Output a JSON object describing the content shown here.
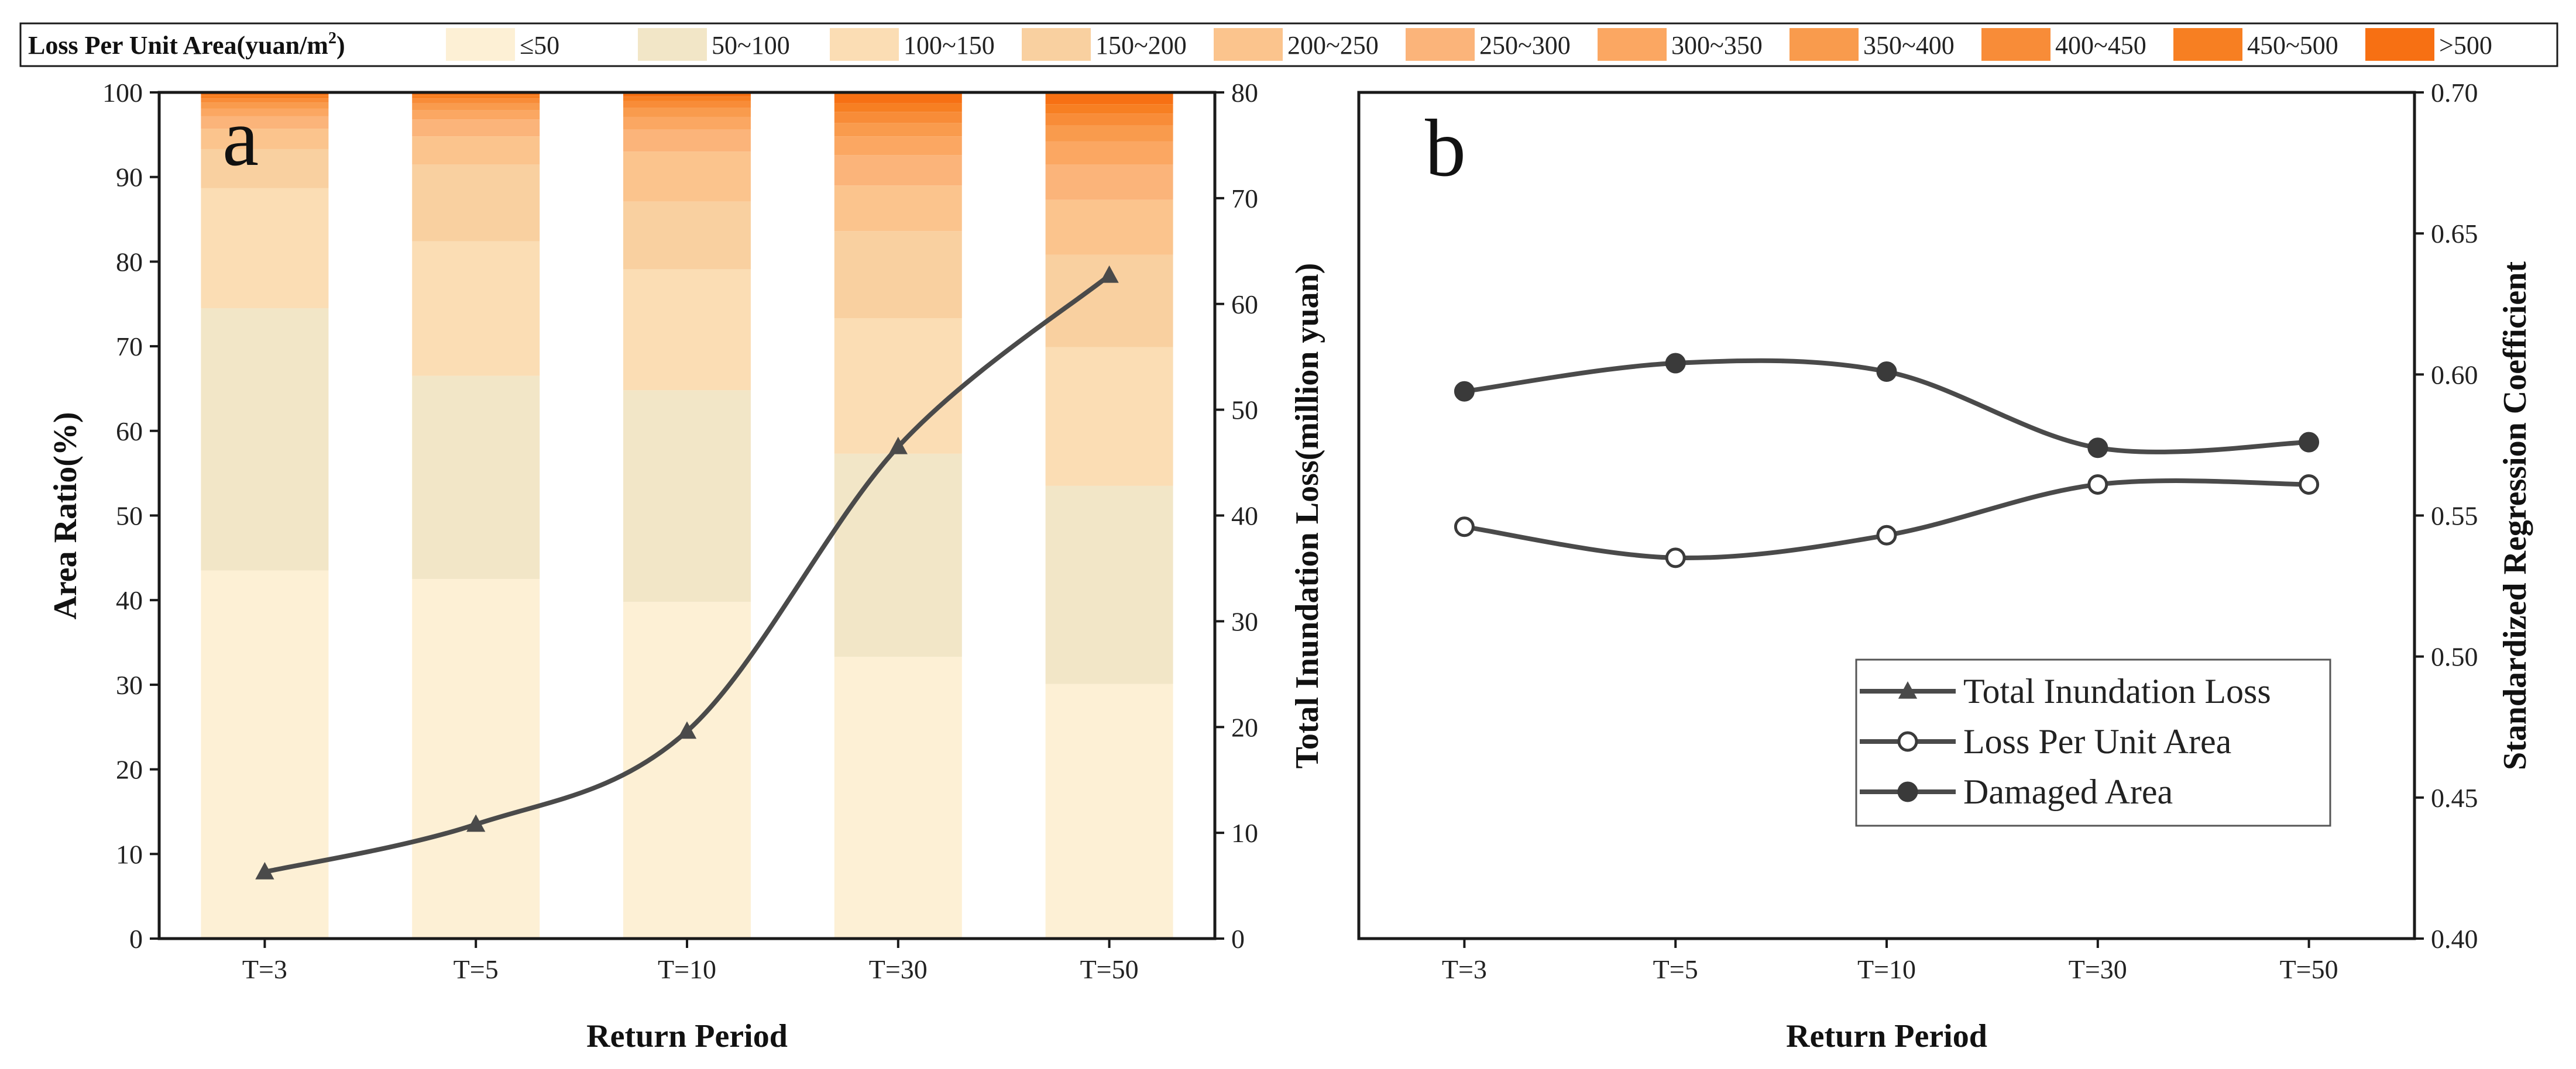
{
  "colors": {
    "axis": "#1a1a1a",
    "line": "#4a4a4a",
    "bins": [
      "#FDF0D5",
      "#F2E6C7",
      "#FBDDB4",
      "#F9D0A0",
      "#FBC48D",
      "#FBB47A",
      "#FBA762",
      "#F99B4D",
      "#F88C38",
      "#F77F22",
      "#F77013"
    ]
  },
  "chart_data": [
    {
      "panel": "a",
      "type": "bar",
      "stacked": true,
      "panel_label": "a",
      "categories": [
        "T=3",
        "T=5",
        "T=10",
        "T=30",
        "T=50"
      ],
      "xlabel": "Return Period",
      "ylabel": "Area Ratio(%)",
      "ylim": [
        0,
        100
      ],
      "yticks": [
        "0",
        "10",
        "20",
        "30",
        "40",
        "50",
        "60",
        "70",
        "80",
        "90",
        "100"
      ],
      "y2label": "Total Inundation Loss(million yuan)",
      "y2lim": [
        0,
        80
      ],
      "y2ticks": [
        "0",
        "10",
        "20",
        "30",
        "40",
        "50",
        "60",
        "70",
        "80"
      ],
      "legend_title": "Loss Per Unit Area(yuan/m²)",
      "legend_title_main": "Loss Per Unit Area(yuan/m",
      "legend_title_sup": "2",
      "legend_title_end": ")",
      "bins": [
        "≤50",
        "50~100",
        "100~150",
        "150~200",
        "200~250",
        "250~300",
        "300~350",
        "350~400",
        "400~450",
        "450~500",
        ">500"
      ],
      "series": [
        {
          "name": "≤50",
          "values": [
            43.5,
            42.5,
            39.8,
            33.3,
            30.1
          ]
        },
        {
          "name": "50~100",
          "values": [
            31.0,
            24.0,
            25.0,
            24.0,
            23.4
          ]
        },
        {
          "name": "100~150",
          "values": [
            14.2,
            15.9,
            14.3,
            16.0,
            16.4
          ]
        },
        {
          "name": "150~200",
          "values": [
            4.6,
            9.1,
            8.0,
            10.3,
            10.9
          ]
        },
        {
          "name": "200~250",
          "values": [
            2.4,
            3.3,
            5.9,
            5.4,
            6.5
          ]
        },
        {
          "name": "250~300",
          "values": [
            1.5,
            2.0,
            2.6,
            3.6,
            4.2
          ]
        },
        {
          "name": "300~350",
          "values": [
            0.9,
            1.1,
            1.5,
            2.2,
            2.7
          ]
        },
        {
          "name": "350~400",
          "values": [
            0.7,
            0.8,
            1.1,
            1.6,
            1.9
          ]
        },
        {
          "name": "400~450",
          "values": [
            0.5,
            0.6,
            0.8,
            1.3,
            1.4
          ]
        },
        {
          "name": "450~500",
          "values": [
            0.4,
            0.4,
            0.5,
            1.0,
            1.1
          ]
        },
        {
          "name": ">500",
          "values": [
            0.3,
            0.3,
            0.5,
            1.3,
            1.4
          ]
        }
      ],
      "line_series": {
        "name": "Total Inundation Loss",
        "axis": "y2",
        "marker": "triangle",
        "values": [
          6.3,
          10.8,
          19.6,
          46.5,
          62.7
        ]
      }
    },
    {
      "panel": "b",
      "type": "line",
      "panel_label": "b",
      "categories": [
        "T=3",
        "T=5",
        "T=10",
        "T=30",
        "T=50"
      ],
      "xlabel": "Return Period",
      "y2label": "Standardized Regression Coefficient",
      "ylim": [
        0.4,
        0.7
      ],
      "yticks": [
        "0.40",
        "0.45",
        "0.50",
        "0.55",
        "0.60",
        "0.65",
        "0.70"
      ],
      "legend": [
        {
          "name": "Total Inundation Loss",
          "marker": "triangle"
        },
        {
          "name": "Loss Per Unit Area",
          "marker": "open-circle"
        },
        {
          "name": "Damaged Area",
          "marker": "filled-circle"
        }
      ],
      "series": [
        {
          "name": "Loss Per Unit Area",
          "marker": "open-circle",
          "values": [
            0.546,
            0.535,
            0.543,
            0.561,
            0.561
          ]
        },
        {
          "name": "Damaged Area",
          "marker": "filled-circle",
          "values": [
            0.594,
            0.604,
            0.601,
            0.574,
            0.576
          ]
        }
      ]
    }
  ]
}
